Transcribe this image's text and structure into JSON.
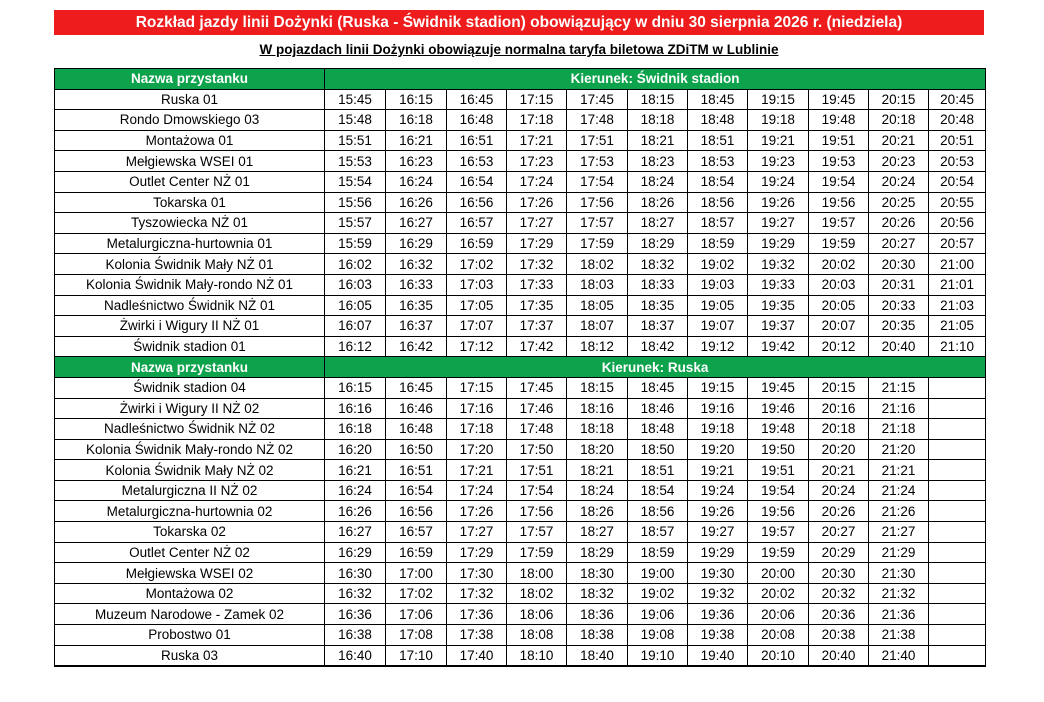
{
  "title": "Rozkład jazdy linii Dożynki (Ruska - Świdnik stadion) obowiązujący w dniu 30 sierpnia 2026 r. (niedziela)",
  "subtitle": "W pojazdach linii Dożynki obowiązuje normalna taryfa biletowa ZDiTM w Lublinie",
  "colors": {
    "title_bg": "#ee1c1c",
    "header_bg": "#0da34c"
  },
  "sections": [
    {
      "stop_header": "Nazwa przystanku",
      "direction": "Kierunek: Świdnik stadion",
      "rows": [
        {
          "stop": "Ruska 01",
          "times": [
            "15:45",
            "16:15",
            "16:45",
            "17:15",
            "17:45",
            "18:15",
            "18:45",
            "19:15",
            "19:45",
            "20:15",
            "20:45"
          ]
        },
        {
          "stop": "Rondo Dmowskiego 03",
          "times": [
            "15:48",
            "16:18",
            "16:48",
            "17:18",
            "17:48",
            "18:18",
            "18:48",
            "19:18",
            "19:48",
            "20:18",
            "20:48"
          ]
        },
        {
          "stop": "Montażowa 01",
          "times": [
            "15:51",
            "16:21",
            "16:51",
            "17:21",
            "17:51",
            "18:21",
            "18:51",
            "19:21",
            "19:51",
            "20:21",
            "20:51"
          ]
        },
        {
          "stop": "Mełgiewska WSEI 01",
          "times": [
            "15:53",
            "16:23",
            "16:53",
            "17:23",
            "17:53",
            "18:23",
            "18:53",
            "19:23",
            "19:53",
            "20:23",
            "20:53"
          ]
        },
        {
          "stop": "Outlet Center NŻ 01",
          "times": [
            "15:54",
            "16:24",
            "16:54",
            "17:24",
            "17:54",
            "18:24",
            "18:54",
            "19:24",
            "19:54",
            "20:24",
            "20:54"
          ]
        },
        {
          "stop": "Tokarska 01",
          "times": [
            "15:56",
            "16:26",
            "16:56",
            "17:26",
            "17:56",
            "18:26",
            "18:56",
            "19:26",
            "19:56",
            "20:25",
            "20:55"
          ]
        },
        {
          "stop": "Tyszowiecka NŻ 01",
          "times": [
            "15:57",
            "16:27",
            "16:57",
            "17:27",
            "17:57",
            "18:27",
            "18:57",
            "19:27",
            "19:57",
            "20:26",
            "20:56"
          ]
        },
        {
          "stop": "Metalurgiczna-hurtownia 01",
          "times": [
            "15:59",
            "16:29",
            "16:59",
            "17:29",
            "17:59",
            "18:29",
            "18:59",
            "19:29",
            "19:59",
            "20:27",
            "20:57"
          ]
        },
        {
          "stop": "Kolonia Świdnik Mały NŻ 01",
          "times": [
            "16:02",
            "16:32",
            "17:02",
            "17:32",
            "18:02",
            "18:32",
            "19:02",
            "19:32",
            "20:02",
            "20:30",
            "21:00"
          ]
        },
        {
          "stop": "Kolonia Świdnik Mały-rondo NŻ 01",
          "times": [
            "16:03",
            "16:33",
            "17:03",
            "17:33",
            "18:03",
            "18:33",
            "19:03",
            "19:33",
            "20:03",
            "20:31",
            "21:01"
          ]
        },
        {
          "stop": "Nadleśnictwo Świdnik NŻ 01",
          "times": [
            "16:05",
            "16:35",
            "17:05",
            "17:35",
            "18:05",
            "18:35",
            "19:05",
            "19:35",
            "20:05",
            "20:33",
            "21:03"
          ]
        },
        {
          "stop": "Żwirki i Wigury II NŻ 01",
          "times": [
            "16:07",
            "16:37",
            "17:07",
            "17:37",
            "18:07",
            "18:37",
            "19:07",
            "19:37",
            "20:07",
            "20:35",
            "21:05"
          ]
        },
        {
          "stop": "Świdnik stadion 01",
          "times": [
            "16:12",
            "16:42",
            "17:12",
            "17:42",
            "18:12",
            "18:42",
            "19:12",
            "19:42",
            "20:12",
            "20:40",
            "21:10"
          ]
        }
      ]
    },
    {
      "stop_header": "Nazwa przystanku",
      "direction": "Kierunek: Ruska",
      "rows": [
        {
          "stop": "Świdnik stadion 04",
          "times": [
            "16:15",
            "16:45",
            "17:15",
            "17:45",
            "18:15",
            "18:45",
            "19:15",
            "19:45",
            "20:15",
            "21:15",
            ""
          ]
        },
        {
          "stop": "Żwirki i Wigury II NŻ 02",
          "times": [
            "16:16",
            "16:46",
            "17:16",
            "17:46",
            "18:16",
            "18:46",
            "19:16",
            "19:46",
            "20:16",
            "21:16",
            ""
          ]
        },
        {
          "stop": "Nadleśnictwo Świdnik NŻ 02",
          "times": [
            "16:18",
            "16:48",
            "17:18",
            "17:48",
            "18:18",
            "18:48",
            "19:18",
            "19:48",
            "20:18",
            "21:18",
            ""
          ]
        },
        {
          "stop": "Kolonia Świdnik Mały-rondo NŻ 02",
          "times": [
            "16:20",
            "16:50",
            "17:20",
            "17:50",
            "18:20",
            "18:50",
            "19:20",
            "19:50",
            "20:20",
            "21:20",
            ""
          ]
        },
        {
          "stop": "Kolonia Świdnik Mały NŻ 02",
          "times": [
            "16:21",
            "16:51",
            "17:21",
            "17:51",
            "18:21",
            "18:51",
            "19:21",
            "19:51",
            "20:21",
            "21:21",
            ""
          ]
        },
        {
          "stop": "Metalurgiczna II NŻ 02",
          "times": [
            "16:24",
            "16:54",
            "17:24",
            "17:54",
            "18:24",
            "18:54",
            "19:24",
            "19:54",
            "20:24",
            "21:24",
            ""
          ]
        },
        {
          "stop": "Metalurgiczna-hurtownia 02",
          "times": [
            "16:26",
            "16:56",
            "17:26",
            "17:56",
            "18:26",
            "18:56",
            "19:26",
            "19:56",
            "20:26",
            "21:26",
            ""
          ]
        },
        {
          "stop": "Tokarska 02",
          "times": [
            "16:27",
            "16:57",
            "17:27",
            "17:57",
            "18:27",
            "18:57",
            "19:27",
            "19:57",
            "20:27",
            "21:27",
            ""
          ]
        },
        {
          "stop": "Outlet Center NŻ 02",
          "times": [
            "16:29",
            "16:59",
            "17:29",
            "17:59",
            "18:29",
            "18:59",
            "19:29",
            "19:59",
            "20:29",
            "21:29",
            ""
          ]
        },
        {
          "stop": "Mełgiewska WSEI 02",
          "times": [
            "16:30",
            "17:00",
            "17:30",
            "18:00",
            "18:30",
            "19:00",
            "19:30",
            "20:00",
            "20:30",
            "21:30",
            ""
          ]
        },
        {
          "stop": "Montażowa 02",
          "times": [
            "16:32",
            "17:02",
            "17:32",
            "18:02",
            "18:32",
            "19:02",
            "19:32",
            "20:02",
            "20:32",
            "21:32",
            ""
          ]
        },
        {
          "stop": "Muzeum Narodowe - Zamek 02",
          "times": [
            "16:36",
            "17:06",
            "17:36",
            "18:06",
            "18:36",
            "19:06",
            "19:36",
            "20:06",
            "20:36",
            "21:36",
            ""
          ]
        },
        {
          "stop": "Probostwo 01",
          "times": [
            "16:38",
            "17:08",
            "17:38",
            "18:08",
            "18:38",
            "19:08",
            "19:38",
            "20:08",
            "20:38",
            "21:38",
            ""
          ]
        },
        {
          "stop": "Ruska 03",
          "times": [
            "16:40",
            "17:10",
            "17:40",
            "18:10",
            "18:40",
            "19:10",
            "19:40",
            "20:10",
            "20:40",
            "21:40",
            ""
          ]
        }
      ]
    }
  ]
}
